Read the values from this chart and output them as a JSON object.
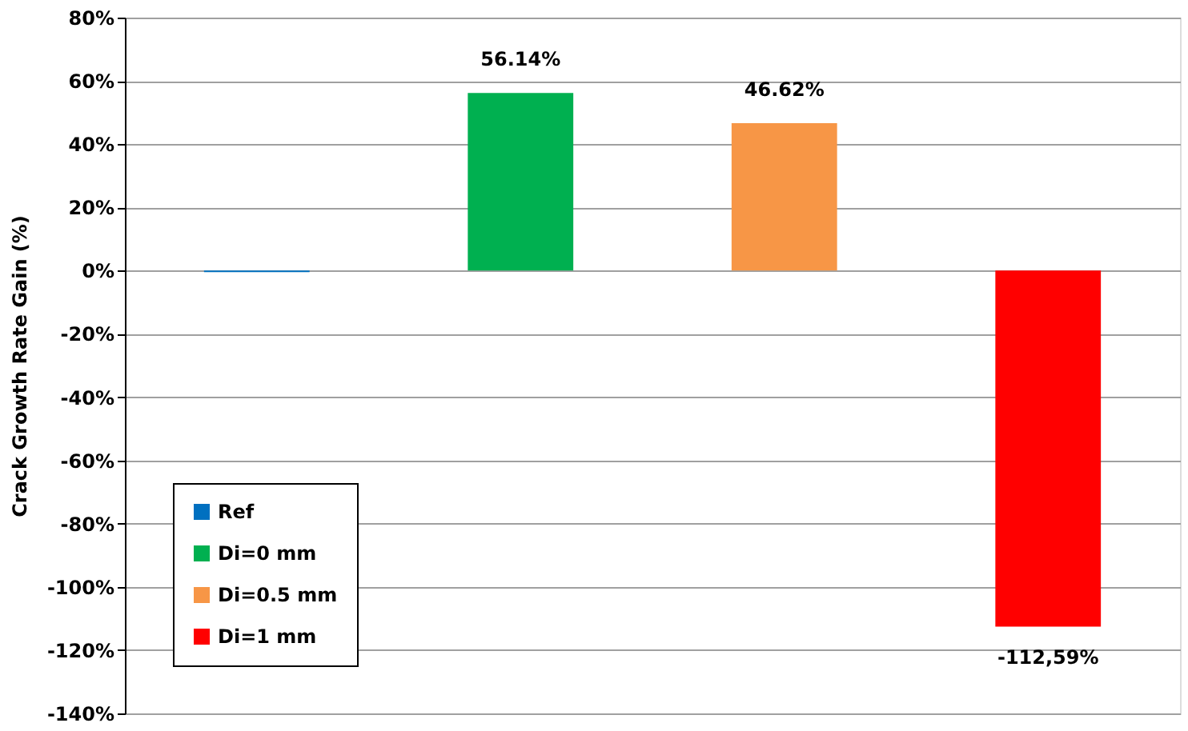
{
  "chart_data": {
    "type": "bar",
    "ylabel": "Crack Growth Rate Gain (%)",
    "categories": [
      null,
      null,
      null,
      null
    ],
    "series": [
      {
        "name": "Ref",
        "color": "#0070c0",
        "values": [
          -0.5,
          null,
          null,
          null
        ],
        "value_labels": [
          null,
          null,
          null,
          null
        ]
      },
      {
        "name": "Di=0 mm",
        "color": "#00b050",
        "values": [
          null,
          56.14,
          null,
          null
        ],
        "value_labels": [
          null,
          "56.14%",
          null,
          null
        ]
      },
      {
        "name": "Di=0.5 mm",
        "color": "#f79646",
        "values": [
          null,
          null,
          46.62,
          null
        ],
        "value_labels": [
          null,
          null,
          "46.62%",
          null
        ]
      },
      {
        "name": "Di=1 mm",
        "color": "#ff0000",
        "values": [
          null,
          null,
          null,
          -112.59
        ],
        "value_labels": [
          null,
          null,
          null,
          "-112,59%"
        ]
      }
    ],
    "ylim": [
      -140,
      80
    ],
    "yticks": [
      {
        "value": -140,
        "label": "-140%"
      },
      {
        "value": -120,
        "label": "-120%"
      },
      {
        "value": -100,
        "label": "-100%"
      },
      {
        "value": -80,
        "label": "-80%"
      },
      {
        "value": -60,
        "label": "-60%"
      },
      {
        "value": -40,
        "label": "-40%"
      },
      {
        "value": -20,
        "label": "-20%"
      },
      {
        "value": 0,
        "label": "0%"
      },
      {
        "value": 20,
        "label": "20%"
      },
      {
        "value": 40,
        "label": "40%"
      },
      {
        "value": 60,
        "label": "60%"
      },
      {
        "value": 80,
        "label": "80%"
      }
    ],
    "grid": "y",
    "legend": "bottom left",
    "tick_labels": "y"
  }
}
